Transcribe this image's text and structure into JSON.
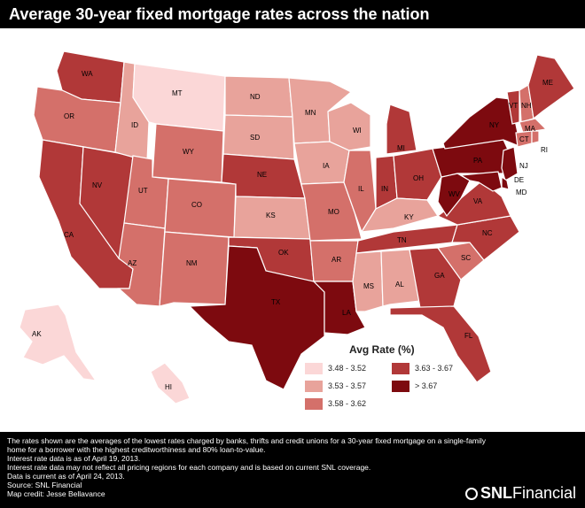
{
  "title": "Average 30-year fixed mortgage rates across the nation",
  "colors": {
    "tier1": "#fbd7d7",
    "tier2": "#e8a39b",
    "tier3": "#d4706a",
    "tier4": "#b13838",
    "tier5": "#7d0a0f"
  },
  "legend": {
    "title": "Avg Rate (%)",
    "items": [
      {
        "label": "3.48 - 3.52",
        "tier": "tier1"
      },
      {
        "label": "3.53 - 3.57",
        "tier": "tier2"
      },
      {
        "label": "3.58 - 3.62",
        "tier": "tier3"
      },
      {
        "label": "3.63 - 3.67",
        "tier": "tier4"
      },
      {
        "label": "> 3.67",
        "tier": "tier5"
      }
    ]
  },
  "states": {
    "WA": "tier4",
    "OR": "tier3",
    "CA": "tier4",
    "NV": "tier4",
    "ID": "tier2",
    "MT": "tier1",
    "WY": "tier3",
    "UT": "tier3",
    "AZ": "tier3",
    "CO": "tier3",
    "NM": "tier3",
    "ND": "tier2",
    "SD": "tier2",
    "NE": "tier4",
    "KS": "tier2",
    "OK": "tier4",
    "TX": "tier5",
    "MN": "tier2",
    "IA": "tier2",
    "MO": "tier3",
    "AR": "tier3",
    "LA": "tier5",
    "WI": "tier2",
    "IL": "tier3",
    "MI": "tier4",
    "IN": "tier4",
    "OH": "tier4",
    "KY": "tier2",
    "TN": "tier4",
    "MS": "tier2",
    "AL": "tier2",
    "GA": "tier4",
    "FL": "tier4",
    "SC": "tier3",
    "NC": "tier4",
    "VA": "tier4",
    "WV": "tier5",
    "PA": "tier5",
    "NY": "tier5",
    "VT": "tier4",
    "NH": "tier3",
    "ME": "tier4",
    "MA": "tier3",
    "CT": "tier3",
    "RI": "tier3",
    "NJ": "tier5",
    "DE": "tier5",
    "MD": "tier5",
    "AK": "tier1",
    "HI": "tier1"
  },
  "footer": {
    "lines": [
      "The rates shown are the averages of the lowest rates charged by banks, thrifts and credit unions for a 30-year fixed mortgage on a single-family",
      "home for a borrower with the highest creditworthiness and 80% loan-to-value.",
      "Interest rate data is as of April 19, 2013.",
      "Interest rate data may not reflect all pricing regions for each company and is based on current SNL coverage.",
      "Data is current as of April 24, 2013.",
      "Source: SNL Financial",
      "Map credit: Jesse Bellavance"
    ],
    "brand_snl": "SNL",
    "brand_fin": "Financial"
  }
}
